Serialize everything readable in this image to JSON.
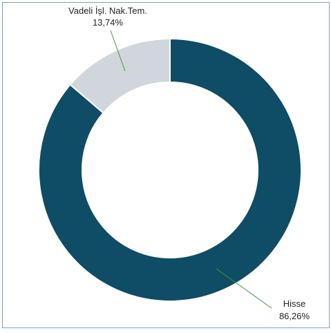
{
  "chart_data": {
    "type": "pie",
    "variant": "donut",
    "slices": [
      {
        "label": "Hisse",
        "value": 86.26,
        "value_label": "86,26%",
        "color": "#0f4c66"
      },
      {
        "label": "Vadeli İşl. Nak.Tem.",
        "value": 13.74,
        "value_label": "13,74%",
        "color": "#d1d6dc"
      }
    ],
    "leader_line_color": "#3a9b3a",
    "legend": "none"
  }
}
